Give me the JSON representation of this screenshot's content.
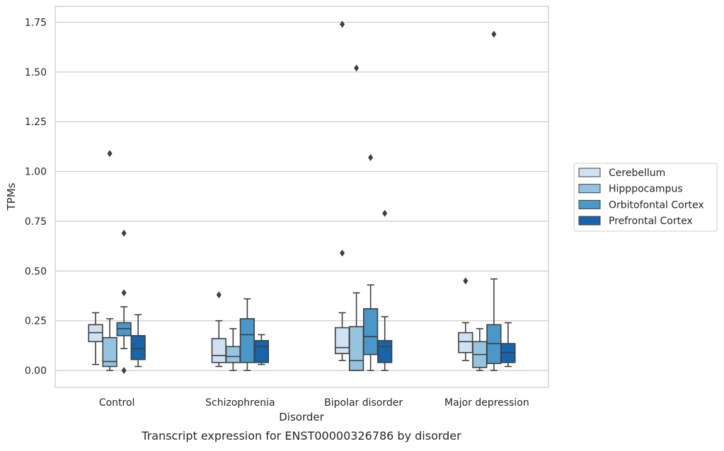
{
  "chart_data": {
    "type": "boxplot",
    "caption": "Transcript expression for ENST00000326786 by disorder",
    "xlabel": "Disorder",
    "ylabel": "TPMs",
    "ylim": [
      -0.085,
      1.83
    ],
    "yticks": [
      0.0,
      0.25,
      0.5,
      0.75,
      1.0,
      1.25,
      1.5,
      1.75
    ],
    "ytick_labels": [
      "0.00",
      "0.25",
      "0.50",
      "0.75",
      "1.00",
      "1.25",
      "1.50",
      "1.75"
    ],
    "grid": "horizontal",
    "legend_position": "right",
    "categories": [
      "Control",
      "Schizophrenia",
      "Bipolar disorder",
      "Major depression"
    ],
    "series": [
      {
        "name": "Cerebellum",
        "color": "#d0e1f2",
        "boxes": [
          {
            "whislo": 0.03,
            "q1": 0.145,
            "med": 0.19,
            "q3": 0.23,
            "whishi": 0.29,
            "fliers": []
          },
          {
            "whislo": 0.02,
            "q1": 0.04,
            "med": 0.075,
            "q3": 0.16,
            "whishi": 0.25,
            "fliers": [
              0.38
            ]
          },
          {
            "whislo": 0.05,
            "q1": 0.085,
            "med": 0.115,
            "q3": 0.215,
            "whishi": 0.29,
            "fliers": [
              0.59,
              1.74
            ]
          },
          {
            "whislo": 0.05,
            "q1": 0.09,
            "med": 0.145,
            "q3": 0.19,
            "whishi": 0.24,
            "fliers": [
              0.45
            ]
          }
        ]
      },
      {
        "name": "Hipppocampus",
        "color": "#94c4df",
        "boxes": [
          {
            "whislo": 0.0,
            "q1": 0.02,
            "med": 0.045,
            "q3": 0.165,
            "whishi": 0.26,
            "fliers": [
              1.09
            ]
          },
          {
            "whislo": 0.0,
            "q1": 0.04,
            "med": 0.07,
            "q3": 0.12,
            "whishi": 0.21,
            "fliers": []
          },
          {
            "whislo": 0.0,
            "q1": 0.0,
            "med": 0.05,
            "q3": 0.22,
            "whishi": 0.39,
            "fliers": [
              1.52
            ]
          },
          {
            "whislo": 0.0,
            "q1": 0.015,
            "med": 0.08,
            "q3": 0.145,
            "whishi": 0.21,
            "fliers": []
          }
        ]
      },
      {
        "name": "Orbitofontal Cortex",
        "color": "#4a98c9",
        "boxes": [
          {
            "whislo": 0.11,
            "q1": 0.175,
            "med": 0.21,
            "q3": 0.24,
            "whishi": 0.32,
            "fliers": [
              0.0,
              0.39,
              0.69
            ]
          },
          {
            "whislo": 0.0,
            "q1": 0.04,
            "med": 0.18,
            "q3": 0.26,
            "whishi": 0.36,
            "fliers": []
          },
          {
            "whislo": 0.0,
            "q1": 0.08,
            "med": 0.17,
            "q3": 0.31,
            "whishi": 0.43,
            "fliers": [
              1.07
            ]
          },
          {
            "whislo": 0.0,
            "q1": 0.035,
            "med": 0.135,
            "q3": 0.23,
            "whishi": 0.46,
            "fliers": [
              1.69
            ]
          }
        ]
      },
      {
        "name": "Prefrontal Cortex",
        "color": "#1764ab",
        "boxes": [
          {
            "whislo": 0.02,
            "q1": 0.055,
            "med": 0.11,
            "q3": 0.175,
            "whishi": 0.28,
            "fliers": []
          },
          {
            "whislo": 0.03,
            "q1": 0.04,
            "med": 0.12,
            "q3": 0.15,
            "whishi": 0.18,
            "fliers": []
          },
          {
            "whislo": 0.0,
            "q1": 0.04,
            "med": 0.12,
            "q3": 0.15,
            "whishi": 0.27,
            "fliers": [
              0.79
            ]
          },
          {
            "whislo": 0.02,
            "q1": 0.04,
            "med": 0.09,
            "q3": 0.135,
            "whishi": 0.24,
            "fliers": []
          }
        ]
      }
    ]
  }
}
